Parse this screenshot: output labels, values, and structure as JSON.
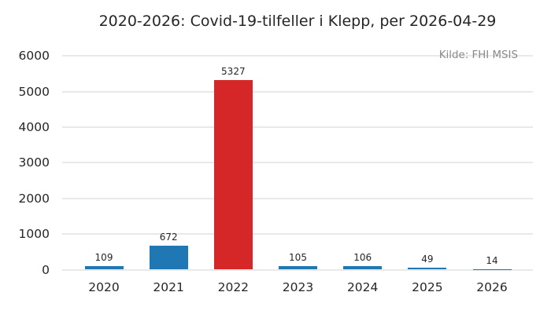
{
  "chart_data": {
    "type": "bar",
    "title": "2020-2026: Covid-19-tilfeller i Klepp, per 2026-04-29",
    "source_note": "Kilde: FHI MSIS",
    "categories": [
      "2020",
      "2021",
      "2022",
      "2023",
      "2024",
      "2025",
      "2026"
    ],
    "values": [
      109,
      672,
      5327,
      105,
      106,
      49,
      14
    ],
    "bar_colors": [
      "#1f77b4",
      "#1f77b4",
      "#d62728",
      "#1f77b4",
      "#1f77b4",
      "#1f77b4",
      "#1f77b4"
    ],
    "data_labels_visible": true,
    "xlabel": "",
    "ylabel": "",
    "ylim": [
      0,
      6000
    ],
    "yticks": [
      0,
      1000,
      2000,
      3000,
      4000,
      5000,
      6000
    ],
    "grid": "y",
    "legend": "none",
    "colors": {
      "bar_default": "#1f77b4",
      "bar_highlight": "#d62728",
      "grid": "#e9e9e9",
      "text": "#262626",
      "muted_text": "#8a8a8a",
      "background": "#ffffff"
    }
  }
}
